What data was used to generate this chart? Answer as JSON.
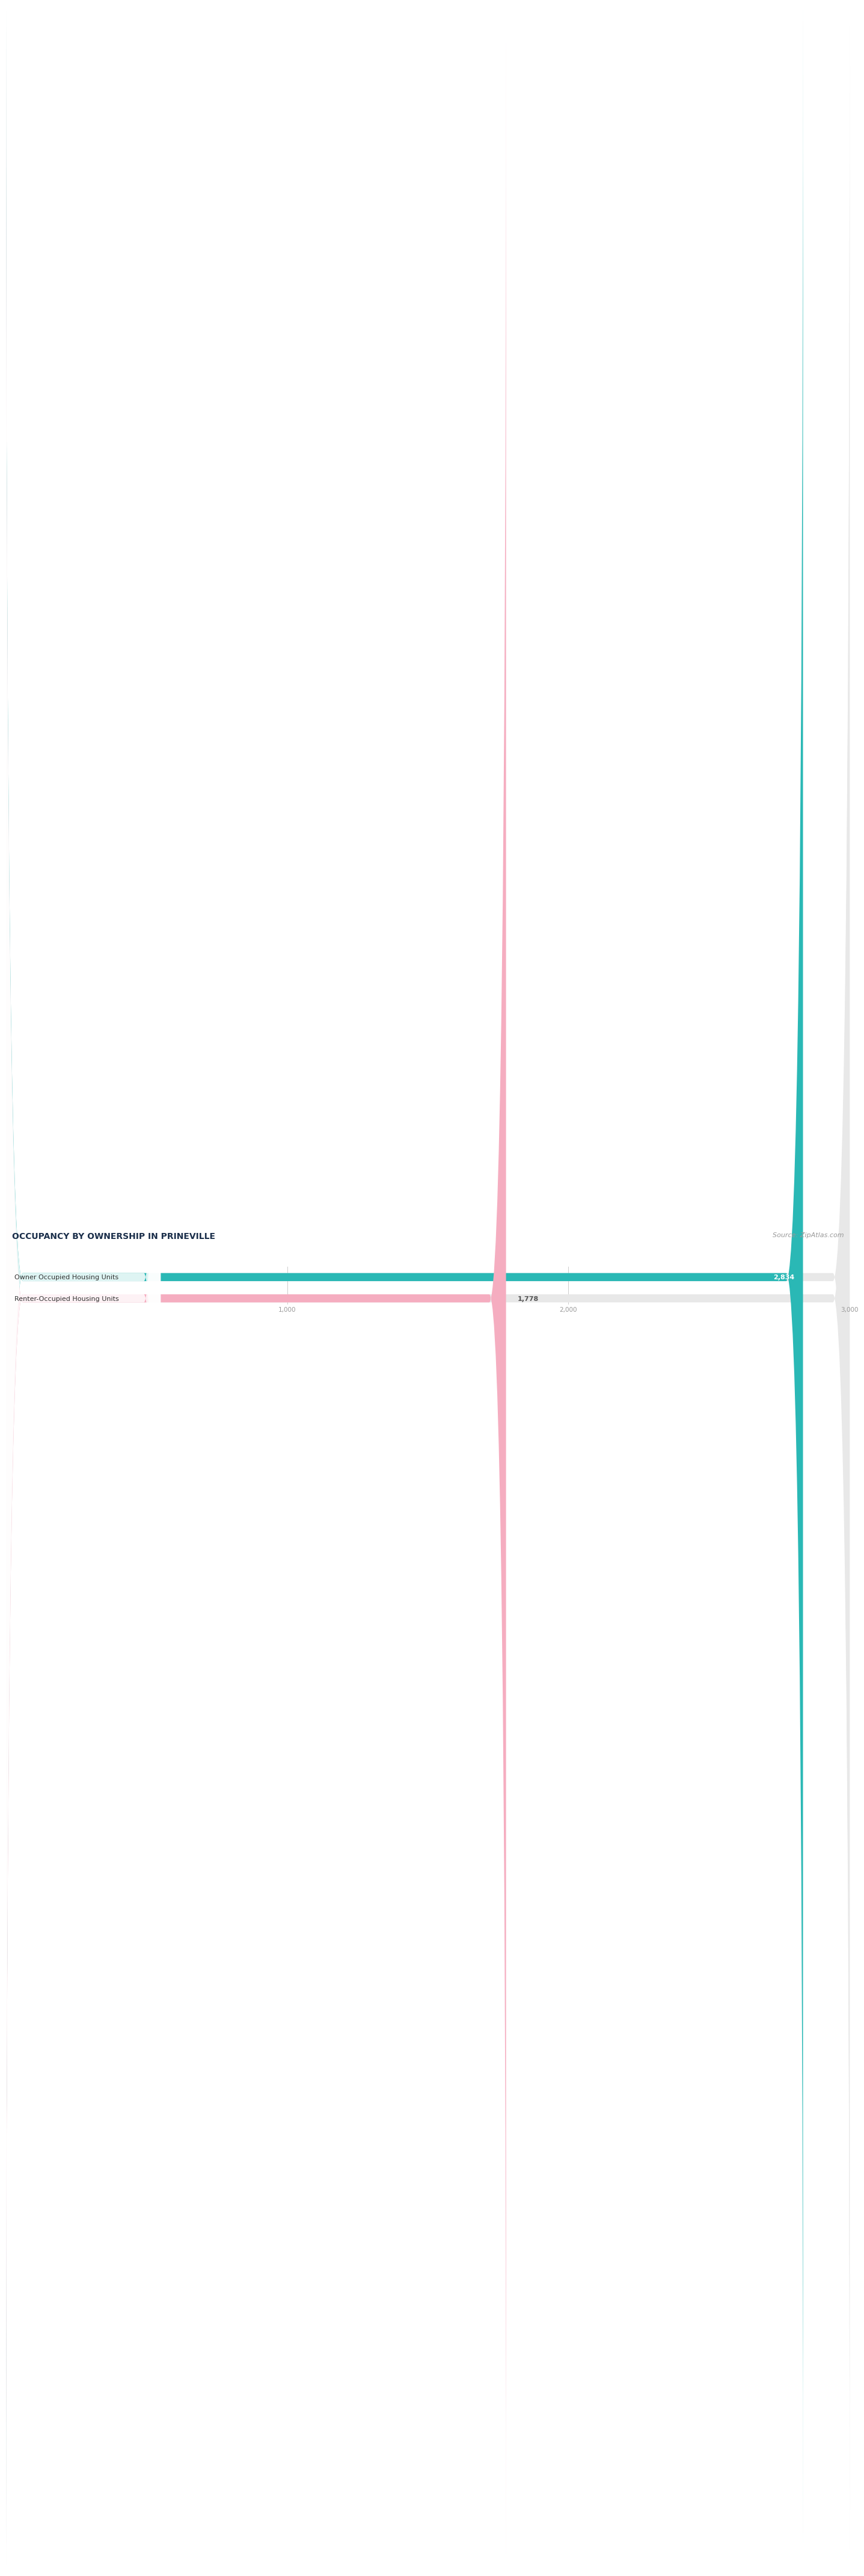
{
  "title": "OCCUPANCY BY OWNERSHIP IN PRINEVILLE",
  "source": "Source: ZipAtlas.com",
  "categories": [
    "Owner Occupied Housing Units",
    "Renter-Occupied Housing Units"
  ],
  "values": [
    2834,
    1778
  ],
  "bar_colors": [
    "#2ab8b5",
    "#f5adc0"
  ],
  "xlim": [
    0,
    3000
  ],
  "xticks": [
    1000,
    2000,
    3000
  ],
  "xtick_labels": [
    "1,000",
    "2,000",
    "3,000"
  ],
  "title_color": "#1a2e4a",
  "background_color": "#ffffff",
  "bar_background_color": "#e8e8e8",
  "title_fontsize": 10,
  "label_fontsize": 8,
  "value_fontsize": 8,
  "source_fontsize": 8
}
